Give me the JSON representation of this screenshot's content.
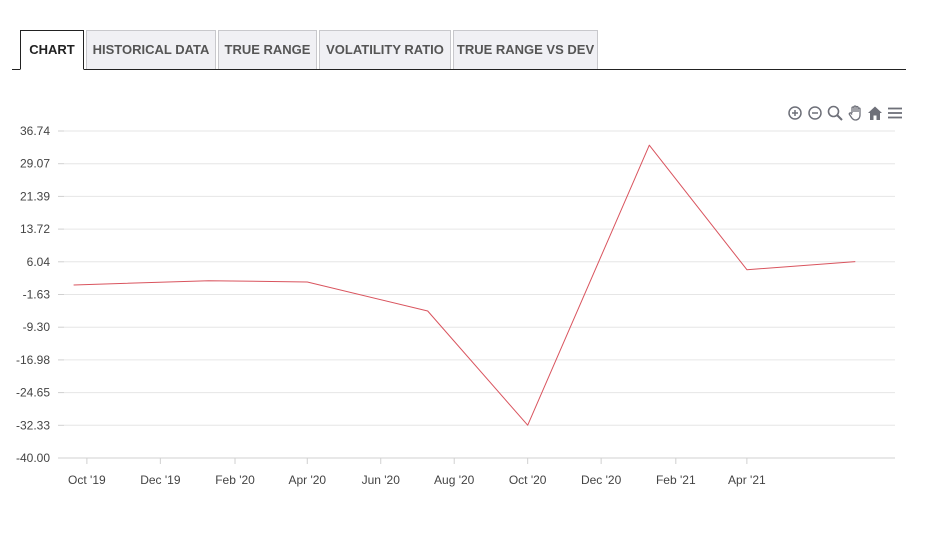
{
  "tabs": [
    {
      "label": "CHART",
      "active": true
    },
    {
      "label": "HISTORICAL DATA",
      "active": false
    },
    {
      "label": "TRUE RANGE",
      "active": false
    },
    {
      "label": "VOLATILITY RATIO",
      "active": false
    },
    {
      "label": "TRUE RANGE VS DEV",
      "active": false
    }
  ],
  "toolbar": {
    "icons": [
      "zoom-in-icon",
      "zoom-out-icon",
      "magnifier-icon",
      "pan-hand-icon",
      "home-icon",
      "menu-icon"
    ]
  },
  "colors": {
    "series_line": "#d9545e",
    "grid": "#e6e6e6",
    "axis": "#d0d0d0"
  },
  "chart_data": {
    "type": "line",
    "title": "",
    "xlabel": "",
    "ylabel": "",
    "ylim": [
      -40.0,
      36.74
    ],
    "y_ticks": [
      "36.74",
      "29.07",
      "21.39",
      "13.72",
      "6.04",
      "-1.63",
      "-9.30",
      "-16.98",
      "-24.65",
      "-32.33",
      "-40.00"
    ],
    "x_ticks": [
      "Oct '19",
      "Dec '19",
      "Feb '20",
      "Apr '20",
      "Jun '20",
      "Aug '20",
      "Oct '20",
      "Dec '20",
      "Feb '21",
      "Apr '21"
    ],
    "grid": true,
    "series": [
      {
        "x": [
          "2019-09-20",
          "2020-01-10",
          "2020-04-01",
          "2020-07-10",
          "2020-10-01",
          "2021-01-10",
          "2021-04-01",
          "2021-06-30"
        ],
        "values": [
          0.6,
          1.6,
          1.3,
          -5.5,
          -32.3,
          33.4,
          4.2,
          6.1
        ]
      }
    ]
  }
}
